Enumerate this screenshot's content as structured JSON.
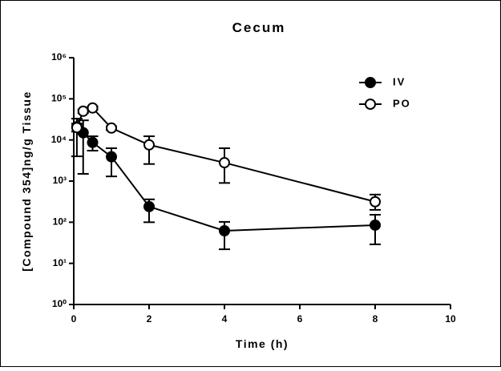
{
  "chart_data": {
    "type": "line",
    "title": "Cecum",
    "x_label": "Time (h)",
    "y_label": "[Compound 354]ng/g Tissue",
    "log_y": true,
    "xlim": [
      0,
      10
    ],
    "xticks": [
      0,
      2,
      4,
      6,
      8,
      10
    ],
    "ylim": [
      1,
      1000000
    ],
    "yticks": [
      {
        "value": 1,
        "label": "10⁰"
      },
      {
        "value": 10,
        "label": "10¹"
      },
      {
        "value": 100,
        "label": "10²"
      },
      {
        "value": 1000,
        "label": "10³"
      },
      {
        "value": 10000,
        "label": "10⁴"
      },
      {
        "value": 100000,
        "label": "10⁵"
      },
      {
        "value": 1000000,
        "label": "10⁶"
      }
    ],
    "legend_position": "upper right",
    "x": [
      0.083,
      0.25,
      0.5,
      1,
      2,
      4,
      8
    ],
    "series": [
      {
        "name": "IV",
        "color": "#000000",
        "marker": "filled",
        "values": [
          21000,
          15000,
          8700,
          3900,
          240,
          62,
          85
        ],
        "error_low": [
          17000,
          13500,
          3200,
          2600,
          140,
          40,
          56
        ],
        "error_high": [
          12000,
          15000,
          3600,
          2400,
          120,
          40,
          67
        ]
      },
      {
        "name": "PO",
        "color": "#000000",
        "marker": "open",
        "values": [
          20000,
          50000,
          60000,
          19500,
          7600,
          2800,
          315
        ],
        "error_low": [
          4000,
          5000,
          5000,
          2000,
          5000,
          1900,
          115
        ],
        "error_high": [
          5000,
          5000,
          5000,
          2000,
          4700,
          3500,
          155
        ]
      }
    ]
  }
}
